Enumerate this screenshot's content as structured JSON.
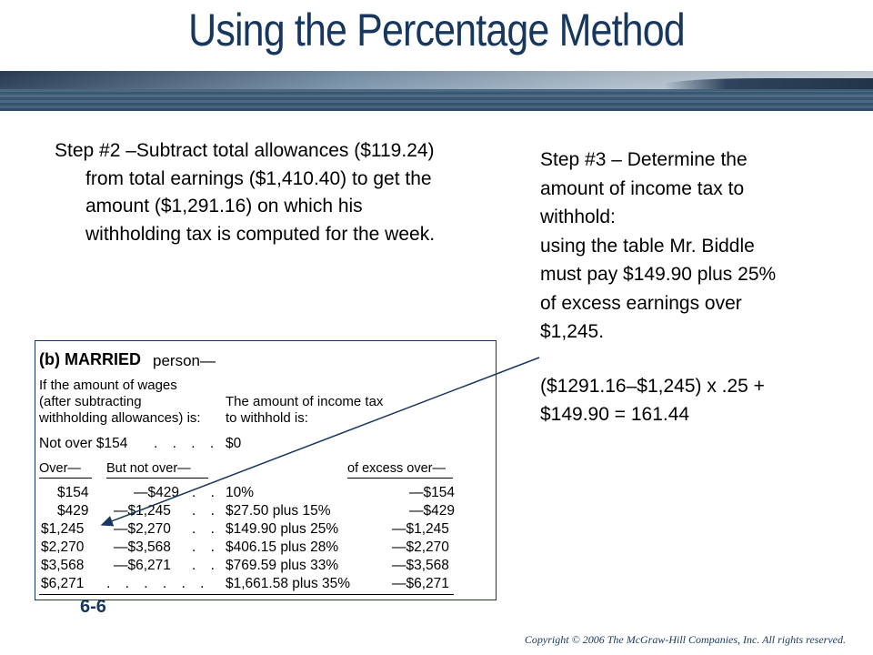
{
  "title": "Using the Percentage Method",
  "step2": {
    "lines": [
      "Step #2 –Subtract total allowances ($119.24)",
      "from total earnings ($1,410.40) to get the",
      "amount ($1,291.16) on which his",
      "withholding tax is computed for the week."
    ]
  },
  "step3": {
    "lines_a": [
      "Step #3  – Determine the",
      "amount of income tax to",
      "withhold:",
      "using the table Mr. Biddle",
      "must pay $149.90 plus 25%",
      "of  excess earnings over",
      "$1,245."
    ],
    "lines_b": [
      "($1291.16–$1,245) x .25 +",
      "$149.90 = 161.44"
    ]
  },
  "table": {
    "heading_b": "(b) MARRIED",
    "heading_person": "person—",
    "left_header": [
      "If the amount of wages",
      "(after subtracting",
      "withholding allowances) is:"
    ],
    "right_header": [
      "The amount of income tax",
      "to withhold is:"
    ],
    "not_over": "Not over $154",
    "not_over_value": "$0",
    "col_over": "Over—",
    "col_but_not_over": "But not over—",
    "col_excess": "of excess over—",
    "rows": [
      {
        "over": "$154",
        "not_over": "—$429",
        "tax": "10%",
        "excess": "—$154"
      },
      {
        "over": "$429",
        "not_over": "—$1,245",
        "tax": "$27.50 plus 15%",
        "excess": "—$429"
      },
      {
        "over": "$1,245",
        "not_over": "—$2,270",
        "tax": "$149.90 plus 25%",
        "excess": "—$1,245"
      },
      {
        "over": "$2,270",
        "not_over": "—$3,568",
        "tax": "$406.15 plus 28%",
        "excess": "—$2,270"
      },
      {
        "over": "$3,568",
        "not_over": "—$6,271",
        "tax": "$769.59 plus 33%",
        "excess": "—$3,568"
      },
      {
        "over": "$6,271",
        "not_over": "",
        "tax": "$1,661.58 plus 35%",
        "excess": "—$6,271"
      }
    ]
  },
  "slide_number": "6-6",
  "copyright": "Copyright © 2006 The McGraw-Hill Companies, Inc. All rights reserved.",
  "colors": {
    "title": "#17375e",
    "arrow": "#17375e"
  }
}
